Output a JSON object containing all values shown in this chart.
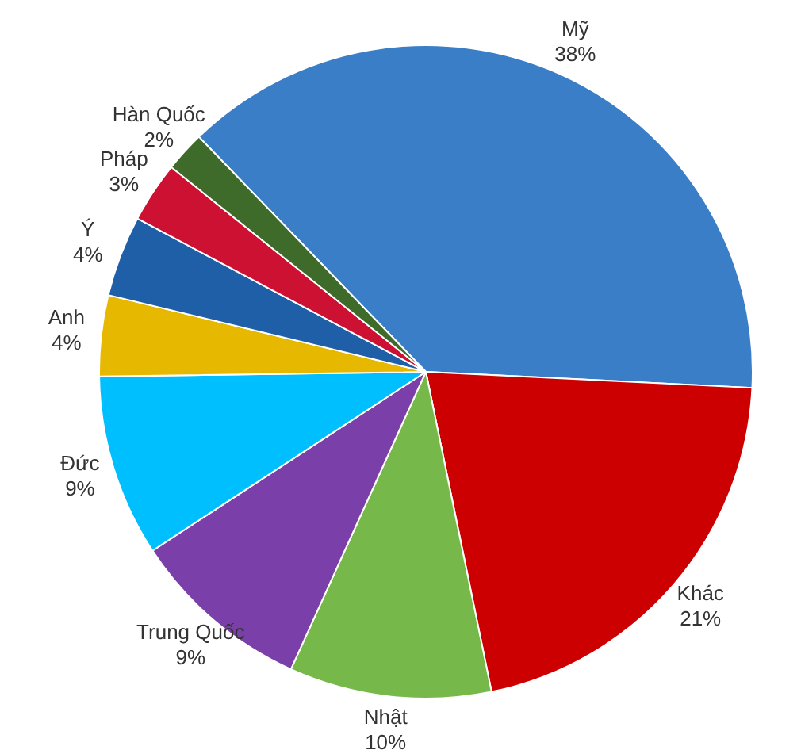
{
  "chart_data": {
    "type": "pie",
    "categories": [
      "Mỹ",
      "Khác",
      "Nhật",
      "Trung Quốc",
      "Đức",
      "Anh",
      "Ý",
      "Pháp",
      "Hàn Quốc"
    ],
    "values": [
      38,
      21,
      10,
      9,
      9,
      4,
      4,
      3,
      2
    ],
    "value_labels": [
      "38%",
      "21%",
      "10%",
      "9%",
      "9%",
      "4%",
      "4%",
      "3%",
      "2%"
    ],
    "colors": [
      "#3a7ec8",
      "#cc0000",
      "#77b84a",
      "#7a3fa8",
      "#00bfff",
      "#e6b800",
      "#1f5fa8",
      "#cc1133",
      "#3e6b2a"
    ],
    "legend": false
  }
}
